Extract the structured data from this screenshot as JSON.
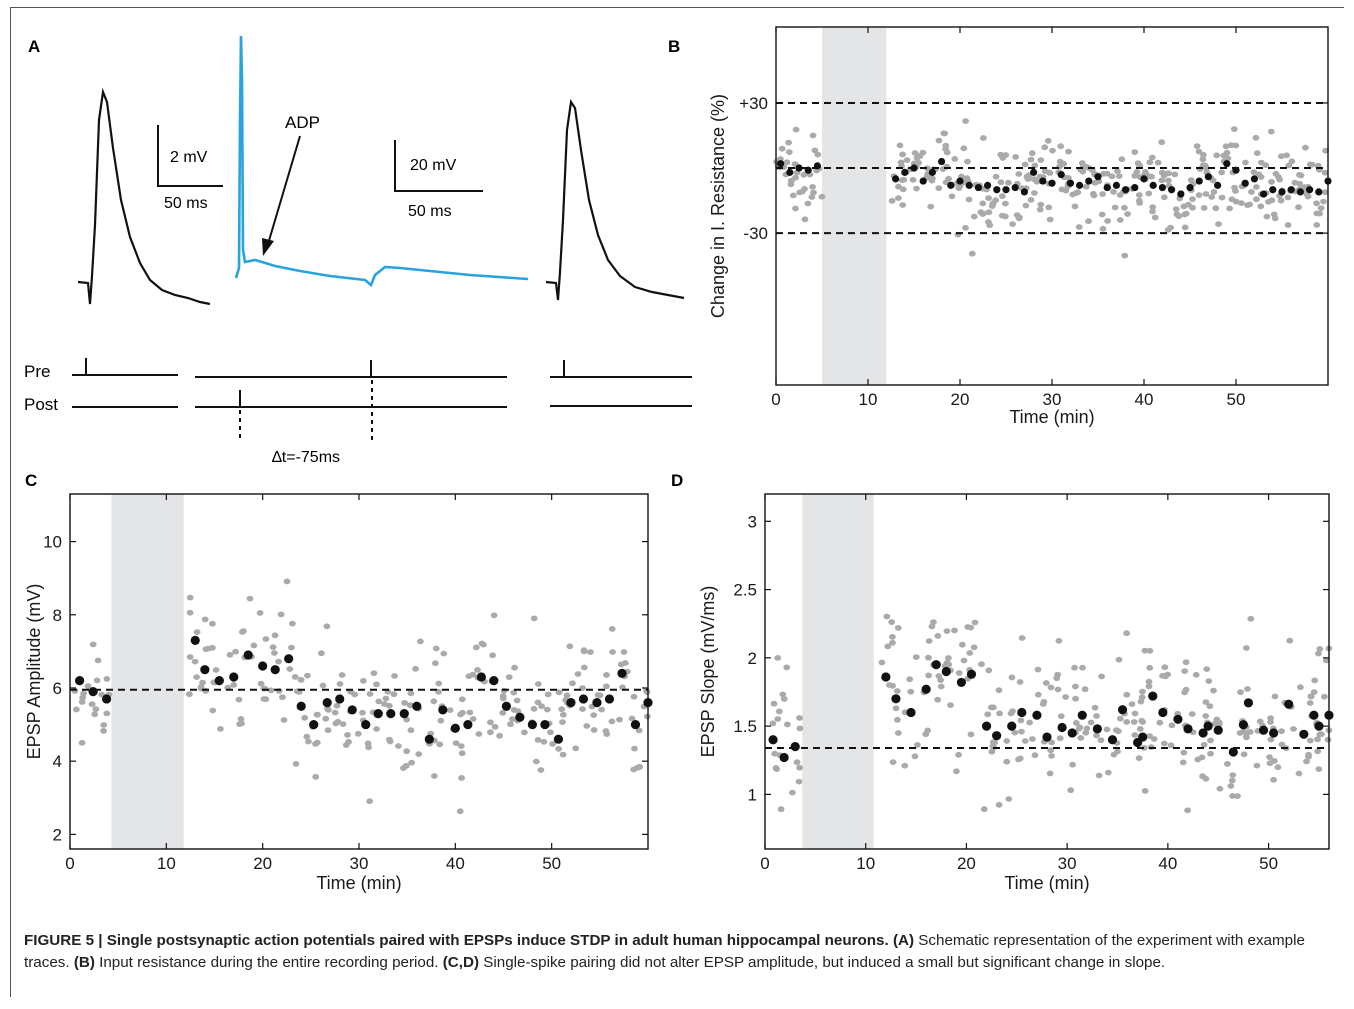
{
  "panelA": {
    "label": "A",
    "adp_label": "ADP",
    "scale1_v": "2 mV",
    "scale1_t": "50 ms",
    "scale2_v": "20 mV",
    "scale2_t": "50 ms",
    "pre_label": "Pre",
    "post_label": "Post",
    "dt_label": "∆t=-75ms",
    "colors": {
      "epsp_trace": "#111111",
      "ap_trace": "#29a3dd"
    }
  },
  "chart_data": [
    {
      "panel": "B",
      "type": "scatter",
      "xlabel": "Time (min)",
      "ylabel": "Change in I. Resistance (%)",
      "xlim": [
        0,
        60
      ],
      "ylim": [
        -100,
        65
      ],
      "xticks": [
        0,
        10,
        20,
        30,
        40,
        50
      ],
      "ytick_labels": [
        "+30",
        "-30"
      ],
      "ytick_values": [
        30,
        -30
      ],
      "shaded_interval": [
        5,
        12
      ],
      "dashed_lines": [
        30,
        0,
        -30
      ],
      "mean_series": {
        "x": [
          0.5,
          1.5,
          2.5,
          3.5,
          4.5,
          13,
          14,
          15,
          16,
          17,
          18,
          19,
          20,
          21,
          22,
          23,
          24,
          25,
          26,
          27,
          28,
          29,
          30,
          31,
          32,
          33,
          34,
          35,
          36,
          37,
          38,
          39,
          40,
          41,
          42,
          43,
          44,
          45,
          46,
          47,
          48,
          49,
          50,
          51,
          52,
          53,
          54,
          55,
          56,
          57,
          58,
          59,
          60
        ],
        "y": [
          2,
          -2,
          0,
          -1,
          1,
          -5,
          -2,
          0,
          -6,
          -2,
          3,
          -8,
          -6,
          -8,
          -9,
          -8,
          -10,
          -10,
          -9,
          -11,
          -2,
          -6,
          -7,
          -3,
          -7,
          -8,
          -6,
          -4,
          -9,
          -8,
          -10,
          -9,
          -5,
          -8,
          -9,
          -10,
          -12,
          -9,
          -6,
          -4,
          -8,
          2,
          -1,
          -7,
          -5,
          -12,
          -10,
          -11,
          -10,
          -11,
          -10,
          -11,
          -6
        ]
      },
      "scatter_color": "#aaaaaa",
      "mean_color": "#111111"
    },
    {
      "panel": "C",
      "type": "scatter",
      "xlabel": "Time (min)",
      "ylabel": "EPSP Amplitude (mV)",
      "xlim": [
        0,
        60
      ],
      "ylim": [
        1.6,
        11.3
      ],
      "xticks": [
        0,
        10,
        20,
        30,
        40,
        50
      ],
      "yticks": [
        2,
        4,
        6,
        8,
        10
      ],
      "shaded_interval": [
        4.3,
        11.8
      ],
      "dashed_lines": [
        5.95
      ],
      "mean_series": {
        "x": [
          1.0,
          2.4,
          3.8,
          13.0,
          14.0,
          15.5,
          17.0,
          18.5,
          20.0,
          21.3,
          22.7,
          24.0,
          25.3,
          26.7,
          28.0,
          29.3,
          30.7,
          32.0,
          33.3,
          34.7,
          36.0,
          37.3,
          38.7,
          40.0,
          41.3,
          42.7,
          44.0,
          45.3,
          46.7,
          48.0,
          49.3,
          50.7,
          52.0,
          53.3,
          54.7,
          56.0,
          57.3,
          58.7,
          60.0
        ],
        "y": [
          6.2,
          5.9,
          5.7,
          7.3,
          6.5,
          6.2,
          6.3,
          6.9,
          6.6,
          6.5,
          6.8,
          5.5,
          5.0,
          5.6,
          5.7,
          5.4,
          5.0,
          5.3,
          5.3,
          5.3,
          5.5,
          4.6,
          5.4,
          4.9,
          5.0,
          6.3,
          6.2,
          5.5,
          5.2,
          5.0,
          5.0,
          4.6,
          5.6,
          5.7,
          5.6,
          5.7,
          6.4,
          5.0,
          5.6
        ]
      },
      "scatter_color": "#aaaaaa",
      "mean_color": "#111111"
    },
    {
      "panel": "D",
      "type": "scatter",
      "xlabel": "Time (min)",
      "ylabel": "EPSP Slope (mV/ms)",
      "xlim": [
        0,
        56
      ],
      "ylim": [
        0.6,
        3.2
      ],
      "xticks": [
        0,
        10,
        20,
        30,
        40,
        50
      ],
      "yticks": [
        1,
        1.5,
        2,
        2.5,
        3
      ],
      "ytick_labels": [
        "1",
        "1.5",
        "2",
        "2.5",
        "3"
      ],
      "shaded_interval": [
        3.7,
        10.8
      ],
      "dashed_lines": [
        1.34
      ],
      "mean_series": {
        "x": [
          0.8,
          1.9,
          3.0,
          12.0,
          13.0,
          14.5,
          16.0,
          17.0,
          18.0,
          19.5,
          20.5,
          22.0,
          23.0,
          24.5,
          25.5,
          27.0,
          28.0,
          29.5,
          30.5,
          31.5,
          33.0,
          34.5,
          35.5,
          37.0,
          37.5,
          38.5,
          39.5,
          41.0,
          42.0,
          43.5,
          44.0,
          45.0,
          46.5,
          47.5,
          48.0,
          49.5,
          50.5,
          52.0,
          53.5,
          54.5,
          55.0,
          56.0
        ],
        "y": [
          1.4,
          1.27,
          1.35,
          1.86,
          1.7,
          1.6,
          1.77,
          1.95,
          1.9,
          1.82,
          1.88,
          1.5,
          1.43,
          1.5,
          1.6,
          1.58,
          1.42,
          1.49,
          1.45,
          1.58,
          1.48,
          1.4,
          1.62,
          1.38,
          1.42,
          1.72,
          1.6,
          1.55,
          1.48,
          1.45,
          1.5,
          1.47,
          1.31,
          1.51,
          1.67,
          1.47,
          1.45,
          1.66,
          1.44,
          1.58,
          1.5,
          1.58
        ]
      },
      "scatter_color": "#aaaaaa",
      "mean_color": "#111111"
    }
  ],
  "caption": {
    "figure_label": "FIGURE 5 | ",
    "title": "Single postsynaptic action potentials paired with EPSPs induce STDP in adult human hippocampal neurons.",
    "a_ref": "(A)",
    "a_text": " Schematic representation of the experiment with example traces. ",
    "b_ref": "(B)",
    "b_text": " Input resistance during the entire recording period. ",
    "cd_ref": "(C,D)",
    "cd_text": " Single-spike pairing did not alter EPSP amplitude, but induced a small but significant change in slope."
  }
}
